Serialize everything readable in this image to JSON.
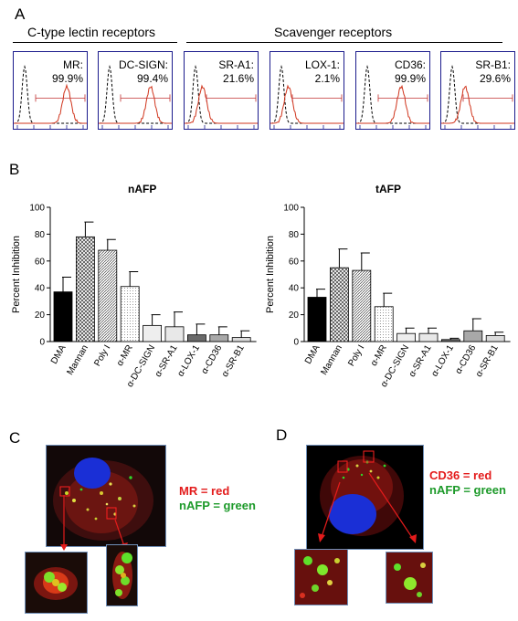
{
  "panels": {
    "a": "A",
    "b": "B",
    "c": "C",
    "d": "D"
  },
  "groups": {
    "ctype": "C-type lectin receptors",
    "scavenger": "Scavenger receptors"
  },
  "histograms": [
    {
      "receptor": "MR:",
      "percent": "99.9%",
      "shift": 0.72,
      "gate": 0.3
    },
    {
      "receptor": "DC-SIGN:",
      "percent": "99.4%",
      "shift": 0.7,
      "gate": 0.3
    },
    {
      "receptor": "SR-A1:",
      "percent": "21.6%",
      "shift": 0.12,
      "gate": 0.3
    },
    {
      "receptor": "LOX-1:",
      "percent": "2.1%",
      "shift": 0.12,
      "gate": 0.3
    },
    {
      "receptor": "CD36:",
      "percent": "99.9%",
      "shift": 0.58,
      "gate": 0.3
    },
    {
      "receptor": "SR-B1:",
      "percent": "29.6%",
      "shift": 0.22,
      "gate": 0.3
    }
  ],
  "chart_data": [
    {
      "type": "bar",
      "title": "nAFP",
      "ylabel": "Percent Inhibition",
      "ylim": [
        0,
        100
      ],
      "yticks": [
        "0",
        "20",
        "40",
        "60",
        "80",
        "100"
      ],
      "categories": [
        "DMA",
        "Mannan",
        "Poly I",
        "α-MR",
        "α-DC-SIGN",
        "α-SR-A1",
        "α-LOX-1",
        "α-CD36",
        "α-SR-B1"
      ],
      "values": [
        37,
        78,
        68,
        41,
        12,
        11,
        5,
        5,
        3
      ],
      "errors": [
        11,
        11,
        8,
        11,
        8,
        11,
        8,
        6,
        5
      ]
    },
    {
      "type": "bar",
      "title": "tAFP",
      "ylabel": "Percent Inhibition",
      "ylim": [
        0,
        100
      ],
      "yticks": [
        "0",
        "20",
        "40",
        "60",
        "80",
        "100"
      ],
      "categories": [
        "DMA",
        "Mannan",
        "Poly I",
        "α-MR",
        "α-DC-SIGN",
        "α-SR-A1",
        "α-LOX-1",
        "α-CD36",
        "α-SR-B1"
      ],
      "values": [
        33,
        55,
        53,
        26,
        6,
        6,
        1.5,
        8,
        4.5
      ],
      "errors": [
        6,
        14,
        13,
        10,
        4,
        4,
        1,
        9,
        2.5
      ]
    }
  ],
  "legend_c": {
    "line1": "MR = red",
    "line2": "nAFP = green"
  },
  "legend_d": {
    "line1": "CD36 = red",
    "line2": "nAFP = green"
  },
  "colors": {
    "nuclei": "#1a2fd6",
    "receptor": "#e31b1b",
    "afp": "#2fd62a",
    "isotype": "#000000"
  }
}
